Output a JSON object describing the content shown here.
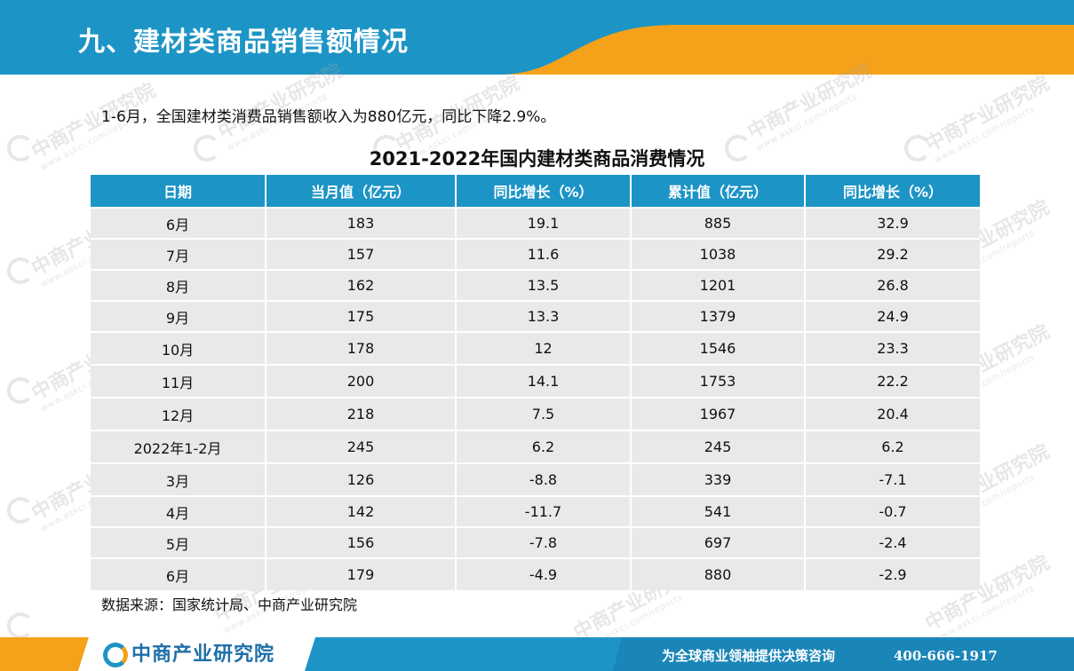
{
  "header": {
    "title": "九、建材类商品销售额情况"
  },
  "intro": "1-6月，全国建材类消费品销售额收入为880亿元，同比下降2.9%。",
  "table": {
    "title": "2021-2022年国内建材类商品消费情况",
    "columns": [
      "日期",
      "当月值（亿元）",
      "同比增长（%）",
      "累计值（亿元）",
      "同比增长（%）"
    ],
    "rows": [
      [
        "6月",
        "183",
        "19.1",
        "885",
        "32.9"
      ],
      [
        "7月",
        "157",
        "11.6",
        "1038",
        "29.2"
      ],
      [
        "8月",
        "162",
        "13.5",
        "1201",
        "26.8"
      ],
      [
        "9月",
        "175",
        "13.3",
        "1379",
        "24.9"
      ],
      [
        "10月",
        "178",
        "12",
        "1546",
        "23.3"
      ],
      [
        "11月",
        "200",
        "14.1",
        "1753",
        "22.2"
      ],
      [
        "12月",
        "218",
        "7.5",
        "1967",
        "20.4"
      ],
      [
        "2022年1-2月",
        "245",
        "6.2",
        "245",
        "6.2"
      ],
      [
        "3月",
        "126",
        "-8.8",
        "339",
        "-7.1"
      ],
      [
        "4月",
        "142",
        "-11.7",
        "541",
        "-0.7"
      ],
      [
        "5月",
        "156",
        "-7.8",
        "697",
        "-2.4"
      ],
      [
        "6月",
        "179",
        "-4.9",
        "880",
        "-2.9"
      ]
    ]
  },
  "source": "数据来源：国家统计局、中商产业研究院",
  "watermark": {
    "text": "中商产业研究院",
    "sub": "www.askci.com/reports"
  },
  "footer": {
    "logo_text": "中商产业研究院",
    "slogan": "为全球商业领袖提供决策咨询",
    "phone": "400-666-1917"
  },
  "colors": {
    "accent_blue": "#1d94c6",
    "accent_orange": "#f5a21a",
    "row_bg": "#e9e9e9"
  }
}
